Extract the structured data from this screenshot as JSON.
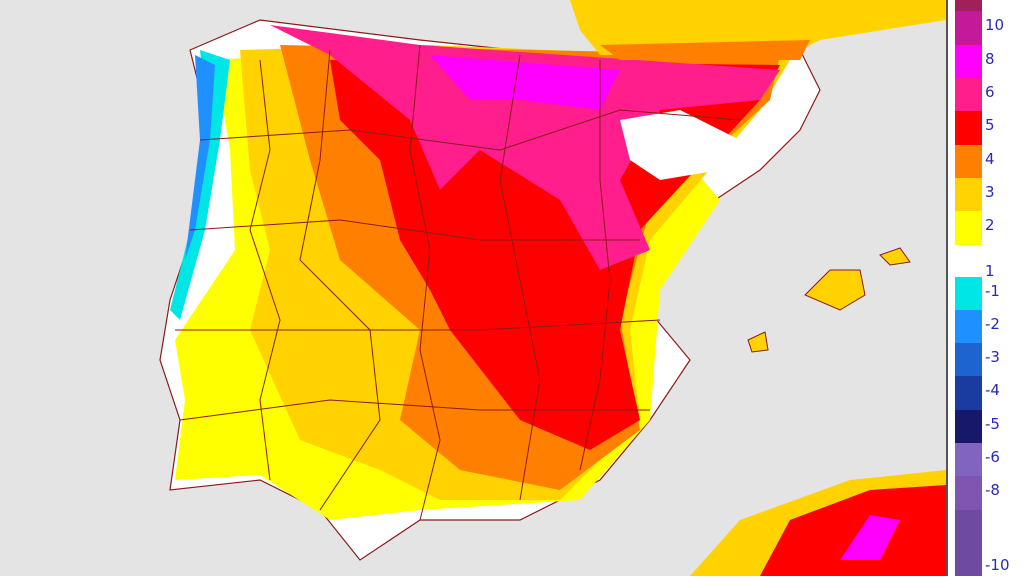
{
  "legend": {
    "steps": [
      {
        "color": "#a0205a"
      },
      {
        "color": "#c41a9a",
        "label": "10"
      },
      {
        "color": "#ff00ff",
        "label": "8"
      },
      {
        "color": "#ff1e8c",
        "label": "6"
      },
      {
        "color": "#ff0000",
        "label": "5"
      },
      {
        "color": "#ff8000",
        "label": "4"
      },
      {
        "color": "#ffd200",
        "label": "3"
      },
      {
        "color": "#ffff00",
        "label": "2"
      },
      {
        "color": "#ffffff",
        "label": "1"
      },
      {
        "color": "#00e6e6",
        "label": "-1"
      },
      {
        "color": "#1e90ff",
        "label": "-2"
      },
      {
        "color": "#1e64d0",
        "label": "-3"
      },
      {
        "color": "#1a3ca0",
        "label": "-4"
      },
      {
        "color": "#18186a",
        "label": "-5"
      },
      {
        "color": "#8064c0",
        "label": "-6"
      },
      {
        "color": "#7e55b0",
        "label": "-8"
      },
      {
        "color": "#6e4aa0",
        "label": "-10"
      }
    ]
  },
  "colors": {
    "sea": "#e4e4e4",
    "borders": "#8b1a1a"
  }
}
